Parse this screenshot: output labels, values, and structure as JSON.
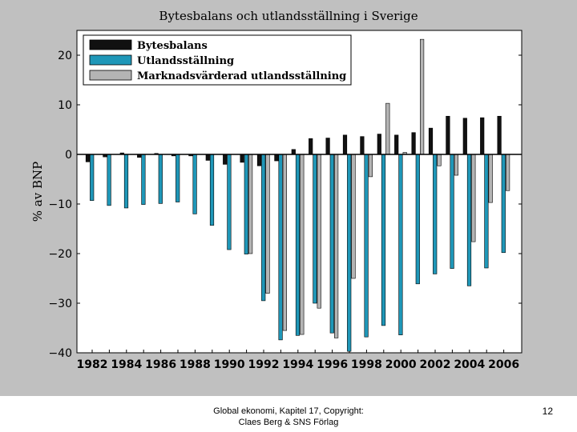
{
  "chart_data": {
    "type": "bar",
    "title": "Bytesbalans och utlandsställning i Sverige",
    "ylabel": "% av BNP",
    "xlabel": "",
    "ylim": [
      -40,
      25
    ],
    "yticks": [
      20,
      10,
      0,
      -10,
      -20,
      -30,
      -40
    ],
    "categories": [
      1982,
      1983,
      1984,
      1985,
      1986,
      1987,
      1988,
      1989,
      1990,
      1991,
      1992,
      1993,
      1994,
      1995,
      1996,
      1997,
      1998,
      1999,
      2000,
      2001,
      2002,
      2003,
      2004,
      2005,
      2006
    ],
    "xtick_labels": [
      "1982",
      "1984",
      "1986",
      "1988",
      "1990",
      "1992",
      "1994",
      "1996",
      "1998",
      "2000",
      "2002",
      "2004",
      "2006"
    ],
    "grid": false,
    "legend_position": "top-left",
    "series": [
      {
        "name": "Bytesbalans",
        "color": "#111111",
        "values": [
          -1.5,
          -0.5,
          0.3,
          -0.6,
          0.2,
          -0.3,
          -0.3,
          -1.2,
          -2.0,
          -1.6,
          -2.3,
          -1.3,
          1.0,
          3.2,
          3.3,
          3.9,
          3.6,
          4.1,
          3.9,
          4.4,
          5.3,
          7.7,
          7.3,
          7.4,
          7.7
        ]
      },
      {
        "name": "Utlandsställning",
        "color": "#1f97b8",
        "values": [
          -9.3,
          -10.3,
          -10.8,
          -10.1,
          -9.9,
          -9.6,
          -12.0,
          -14.3,
          -19.2,
          -20.1,
          -29.5,
          -37.4,
          -36.5,
          -30.0,
          -36.0,
          -39.7,
          -36.8,
          -34.5,
          -36.4,
          -26.1,
          -24.1,
          -23.0,
          -26.5,
          -22.9,
          -19.8
        ]
      },
      {
        "name": "Marknadsvärderad utlandsställning",
        "color": "#b4b4b4",
        "values": [
          null,
          null,
          null,
          null,
          null,
          null,
          null,
          null,
          null,
          -20.0,
          -28.0,
          -35.5,
          -36.3,
          -31.0,
          -37.0,
          -25.0,
          -4.5,
          10.3,
          0.4,
          23.2,
          -2.3,
          -4.2,
          -17.6,
          -9.7,
          -7.3
        ]
      }
    ]
  },
  "footer": {
    "line1": "Global ekonomi, Kapitel 17, Copyright:",
    "line2": "Claes Berg & SNS Förlag",
    "page_number": "12"
  }
}
